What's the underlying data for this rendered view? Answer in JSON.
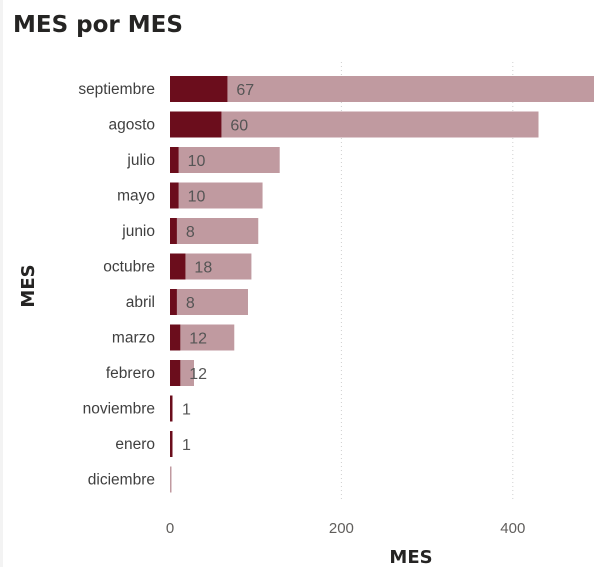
{
  "title": "MES por MES",
  "chart_data": {
    "type": "bar",
    "orientation": "horizontal",
    "title": "MES por MES",
    "ylabel": "MES",
    "xlabel": "MES",
    "xlim": [
      0,
      500
    ],
    "xticks": [
      0,
      200,
      400
    ],
    "grid": true,
    "categories": [
      "septiembre",
      "agosto",
      "julio",
      "mayo",
      "junio",
      "octubre",
      "abril",
      "marzo",
      "febrero",
      "noviembre",
      "enero",
      "diciembre"
    ],
    "series": [
      {
        "values": [
          67,
          60,
          10,
          10,
          8,
          18,
          8,
          12,
          12,
          1,
          1,
          0
        ],
        "color": "#6b0d1c",
        "data_labels": true
      },
      {
        "values": [
          500,
          430,
          128,
          108,
          103,
          95,
          91,
          75,
          28,
          2,
          2,
          1
        ],
        "color": "#c09aa0",
        "data_labels": false
      }
    ]
  }
}
